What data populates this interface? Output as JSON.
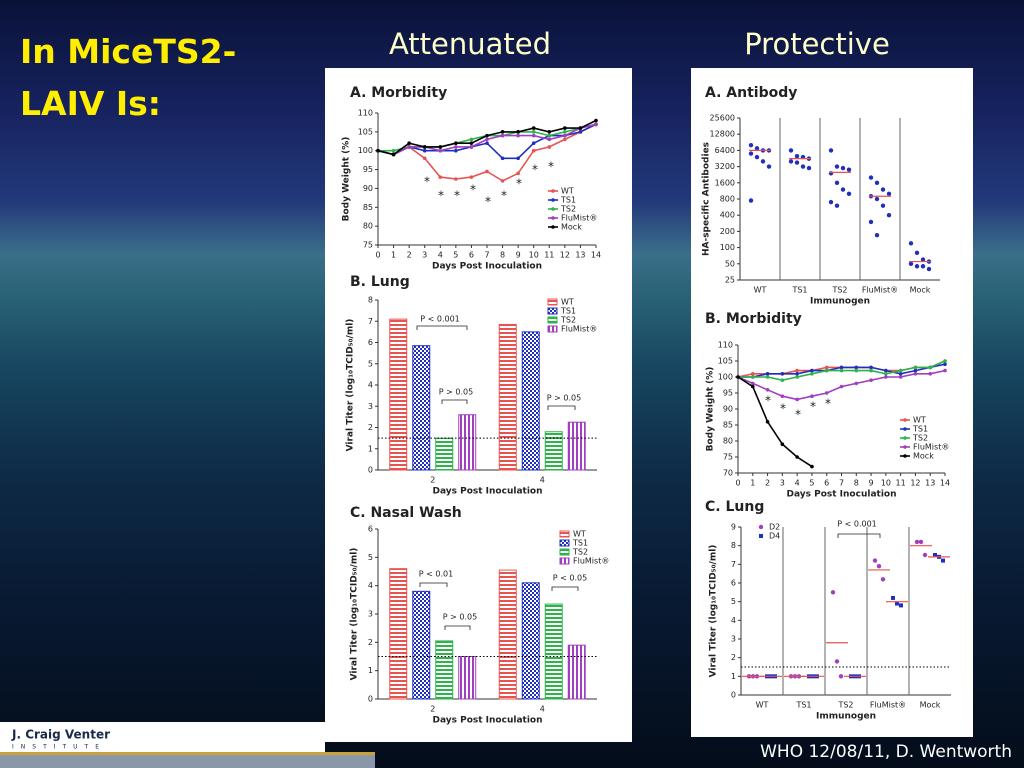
{
  "slide": {
    "title": "In MiceTS2-LAIV Is:",
    "headings": [
      "Attenuated",
      "Protective"
    ],
    "footer": "WHO 12/08/11, D. Wentworth",
    "logo": [
      "J. Craig Venter",
      "INSTITUTE"
    ]
  },
  "chart_data": [
    {
      "type": "line",
      "title": "A. Morbidity",
      "x_label": "Days Post Inoculation",
      "y_label": "Body Weight (%)",
      "x": [
        0,
        1,
        2,
        3,
        4,
        5,
        6,
        7,
        8,
        9,
        10,
        11,
        12,
        13,
        14
      ],
      "xlim": [
        0,
        14
      ],
      "xticks": [
        0,
        1,
        2,
        3,
        4,
        5,
        6,
        7,
        8,
        9,
        10,
        11,
        12,
        13,
        14
      ],
      "ylim": [
        75,
        110
      ],
      "yticks": [
        75,
        80,
        85,
        90,
        95,
        100,
        105,
        110
      ],
      "legend": "lower right",
      "series": [
        {
          "name": "WT",
          "color": "#e8534f",
          "values": [
            100,
            99,
            101,
            98,
            93,
            92.5,
            93,
            94.5,
            92,
            94,
            100,
            101,
            103,
            105,
            107
          ]
        },
        {
          "name": "TS1",
          "color": "#1f2fbf",
          "values": [
            100,
            99,
            101,
            100,
            100,
            100,
            101,
            102,
            98,
            98,
            102,
            104,
            104,
            105,
            107
          ]
        },
        {
          "name": "TS2",
          "color": "#2db34a",
          "values": [
            100,
            100,
            101,
            101,
            101,
            102,
            103,
            104,
            104,
            105,
            105,
            104,
            105,
            106,
            107
          ]
        },
        {
          "name": "FluMist®",
          "color": "#a03fc0",
          "values": [
            100,
            99,
            101,
            101,
            100,
            101,
            101,
            103,
            104,
            104,
            104,
            103,
            104,
            106,
            107
          ]
        },
        {
          "name": "Mock",
          "color": "#000000",
          "values": [
            100,
            99,
            102,
            101,
            101,
            102,
            102,
            104,
            105,
            105,
            106,
            105,
            106,
            106,
            108
          ]
        }
      ],
      "annotations": [
        "*",
        "*",
        "*",
        "*",
        "*",
        "*",
        "*",
        "*",
        "*"
      ]
    },
    {
      "type": "bar",
      "title": "B. Lung",
      "x_label": "Days Post Inoculation",
      "y_label": "Viral Titer (log₁₀TCID₅₀/ml)",
      "categories": [
        "2",
        "4"
      ],
      "ylim": [
        0,
        8
      ],
      "yticks": [
        0,
        1,
        2,
        3,
        4,
        5,
        6,
        7,
        8
      ],
      "limit": 1.5,
      "legend": "upper right",
      "series": [
        {
          "name": "WT",
          "color": "#e8534f",
          "values": [
            7.1,
            6.85
          ]
        },
        {
          "name": "TS1",
          "color": "#1f2fbf",
          "values": [
            5.85,
            6.5
          ]
        },
        {
          "name": "TS2",
          "color": "#2db34a",
          "values": [
            1.5,
            1.8
          ]
        },
        {
          "name": "FluMist®",
          "color": "#a03fc0",
          "values": [
            2.6,
            2.25
          ]
        }
      ],
      "annotations": [
        "P < 0.001",
        "P > 0.05",
        "P > 0.05"
      ]
    },
    {
      "type": "bar",
      "title": "C. Nasal Wash",
      "x_label": "Days Post Inoculation",
      "y_label": "Viral Titer (log₁₀TCID₅₀/ml)",
      "categories": [
        "2",
        "4"
      ],
      "ylim": [
        0,
        6
      ],
      "yticks": [
        0,
        1,
        2,
        3,
        4,
        5,
        6
      ],
      "limit": 1.5,
      "legend": "upper right",
      "series": [
        {
          "name": "WT",
          "color": "#e8534f",
          "values": [
            4.6,
            4.55
          ]
        },
        {
          "name": "TS1",
          "color": "#1f2fbf",
          "values": [
            3.8,
            4.1
          ]
        },
        {
          "name": "TS2",
          "color": "#2db34a",
          "values": [
            2.05,
            3.35
          ]
        },
        {
          "name": "FluMist®",
          "color": "#a03fc0",
          "values": [
            1.5,
            1.9
          ]
        }
      ],
      "annotations": [
        "P < 0.01",
        "P > 0.05",
        "P < 0.05"
      ]
    },
    {
      "type": "strip",
      "title": "A. Antibody",
      "x_label": "Immunogen",
      "y_label": "HA-specific Antibodies",
      "log": true,
      "categories": [
        "WT",
        "TS1",
        "TS2",
        "FluMist®",
        "Mock"
      ],
      "ylim": [
        25,
        25600
      ],
      "yticks": [
        25,
        50,
        100,
        200,
        400,
        800,
        1600,
        3200,
        6400,
        12800,
        25600
      ],
      "mean_color": "#e8534f",
      "series": [
        {
          "color": "#1f2fbf",
          "values": [
            [
              8000,
              7000,
              6400,
              6400,
              5600,
              4800,
              4000,
              3200,
              750
            ],
            [
              6400,
              5000,
              4800,
              4500,
              4000,
              3800,
              3200,
              3000
            ],
            [
              6400,
              3200,
              3000,
              2800,
              2400,
              1600,
              1200,
              1000,
              700,
              600
            ],
            [
              2000,
              1600,
              1200,
              1000,
              900,
              800,
              600,
              400,
              300,
              170
            ],
            [
              120,
              80,
              60,
              55,
              50,
              45,
              45,
              40
            ]
          ],
          "means": [
            6400,
            4500,
            2500,
            900,
            55
          ]
        }
      ]
    },
    {
      "type": "line",
      "title": "B. Morbidity",
      "x_label": "Days Post Inoculation",
      "y_label": "Body Weight (%)",
      "x": [
        0,
        1,
        2,
        3,
        4,
        5,
        6,
        7,
        8,
        9,
        10,
        11,
        12,
        13,
        14
      ],
      "xlim": [
        0,
        14
      ],
      "xticks": [
        0,
        1,
        2,
        3,
        4,
        5,
        6,
        7,
        8,
        9,
        10,
        11,
        12,
        13,
        14
      ],
      "ylim": [
        70,
        110
      ],
      "yticks": [
        70,
        75,
        80,
        85,
        90,
        95,
        100,
        105,
        110
      ],
      "legend": "lower right",
      "series": [
        {
          "name": "WT",
          "color": "#e8534f",
          "values": [
            100,
            101,
            101,
            101,
            102,
            102,
            103,
            103,
            103,
            103,
            102,
            102,
            103,
            103,
            105
          ]
        },
        {
          "name": "TS1",
          "color": "#1f2fbf",
          "values": [
            100,
            100,
            101,
            101,
            101,
            102,
            102,
            103,
            103,
            103,
            102,
            101,
            102,
            103,
            104
          ]
        },
        {
          "name": "TS2",
          "color": "#2db34a",
          "values": [
            100,
            100,
            100,
            99,
            100,
            101,
            102,
            102,
            102,
            102,
            101,
            102,
            103,
            103,
            105
          ]
        },
        {
          "name": "FluMist®",
          "color": "#a03fc0",
          "values": [
            100,
            98,
            96,
            94,
            93,
            94,
            95,
            97,
            98,
            99,
            100,
            100,
            101,
            101,
            102
          ]
        },
        {
          "name": "Mock",
          "color": "#000000",
          "values": [
            100,
            97,
            86,
            79,
            75,
            72,
            null,
            null,
            null,
            null,
            null,
            null,
            null,
            null,
            null
          ]
        }
      ],
      "annotations": [
        "*",
        "*",
        "*",
        "*",
        "*"
      ]
    },
    {
      "type": "strip",
      "title": "C. Lung",
      "x_label": "Immunogen",
      "y_label": "Viral Titer (log₁₀TCID₅₀/ml)",
      "categories": [
        "WT",
        "TS1",
        "TS2",
        "FluMist®",
        "Mock"
      ],
      "ylim": [
        0,
        9
      ],
      "yticks": [
        0,
        1,
        2,
        3,
        4,
        5,
        6,
        7,
        8,
        9
      ],
      "limit": 1.5,
      "legend": "upper left",
      "mean_color": "#e8534f",
      "series": [
        {
          "name": "D2",
          "color": "#a03fc0",
          "values": [
            [
              1,
              1,
              1
            ],
            [
              1,
              1,
              1
            ],
            [
              5.5,
              1.8,
              1
            ],
            [
              7.2,
              6.9,
              6.2
            ],
            [
              8.2,
              8.2,
              7.5
            ]
          ],
          "means": [
            1,
            1,
            2.8,
            6.7,
            8.0
          ]
        },
        {
          "name": "D4",
          "color": "#1f2fbf",
          "values": [
            [
              1,
              1,
              1
            ],
            [
              1,
              1,
              1
            ],
            [
              1,
              1,
              1
            ],
            [
              5.2,
              4.9,
              4.8
            ],
            [
              7.5,
              7.4,
              7.2
            ]
          ],
          "means": [
            1,
            1,
            1,
            5.0,
            7.4
          ]
        }
      ],
      "annotations": [
        "P < 0.001"
      ]
    }
  ]
}
